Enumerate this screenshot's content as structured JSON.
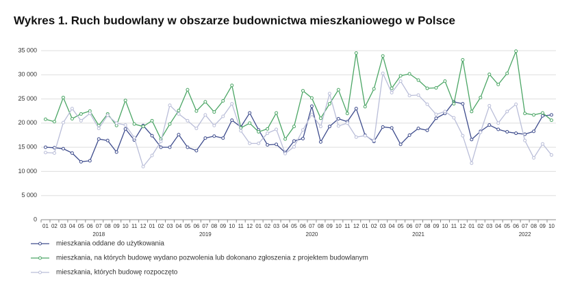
{
  "chart_data": {
    "type": "line",
    "title": "Wykres 1. Ruch budowlany w obszarze budownictwa mieszkaniowego w Polsce",
    "categories": [
      "01",
      "02",
      "03",
      "04",
      "05",
      "06",
      "07",
      "08",
      "09",
      "10",
      "11",
      "12",
      "01",
      "02",
      "03",
      "04",
      "05",
      "06",
      "07",
      "08",
      "09",
      "10",
      "11",
      "12",
      "01",
      "02",
      "03",
      "04",
      "05",
      "06",
      "07",
      "08",
      "09",
      "10",
      "11",
      "12",
      "01",
      "02",
      "03",
      "04",
      "05",
      "06",
      "07",
      "08",
      "09",
      "10",
      "11",
      "12",
      "01",
      "02",
      "03",
      "04",
      "05",
      "06",
      "07",
      "08",
      "09",
      "10"
    ],
    "years": [
      "2018",
      "2019",
      "2020",
      "2021",
      "2022"
    ],
    "ylim": [
      0,
      35000
    ],
    "yticks": [
      0,
      {
        "value": 5000,
        "label": "5 000"
      },
      {
        "value": 10000,
        "label": "10 000"
      },
      {
        "value": 15000,
        "label": "15 000"
      },
      {
        "value": 20000,
        "label": "20 000"
      },
      {
        "value": 25000,
        "label": "25 000"
      },
      {
        "value": 30000,
        "label": "30 000"
      },
      {
        "value": 35000,
        "label": "35 000"
      }
    ],
    "grid": true,
    "series": [
      {
        "name": "mieszkania oddane do użytkowania",
        "color": "#3d4b8c",
        "values": [
          15000,
          14900,
          14700,
          13800,
          12000,
          12200,
          16700,
          16400,
          14000,
          18800,
          16500,
          19500,
          17400,
          15000,
          15000,
          17600,
          15000,
          14300,
          16900,
          17300,
          16900,
          20600,
          19200,
          22100,
          18600,
          15500,
          15600,
          13900,
          16300,
          16800,
          23500,
          16100,
          19300,
          20900,
          20300,
          23000,
          17500,
          16200,
          19200,
          19000,
          15600,
          17500,
          18900,
          18500,
          21000,
          22000,
          24400,
          24000,
          16600,
          18300,
          19600,
          18700,
          18200,
          17900,
          17700,
          18300,
          21500,
          21700
        ]
      },
      {
        "name": "mieszkania, na których budowę wydano pozwolenia lub dokonano zgłoszenia z projektem budowlanym",
        "color": "#4aa564",
        "values": [
          20800,
          20300,
          25300,
          20900,
          21900,
          22500,
          19500,
          21900,
          19500,
          24700,
          19800,
          19300,
          20500,
          16700,
          19800,
          22600,
          26900,
          22500,
          24400,
          22300,
          24600,
          27800,
          19000,
          20000,
          18200,
          18800,
          22100,
          16700,
          19300,
          26700,
          25200,
          21000,
          24000,
          26900,
          22000,
          34500,
          23400,
          27100,
          33900,
          27200,
          29800,
          30200,
          28900,
          27200,
          27300,
          28700,
          24000,
          33100,
          22400,
          25300,
          30100,
          28000,
          30300,
          34900,
          22000,
          21700,
          22100,
          20600
        ]
      },
      {
        "name": "mieszkania, których budowę rozpoczęto",
        "color": "#b9bdd8",
        "values": [
          13900,
          13800,
          20100,
          23000,
          20500,
          22000,
          18900,
          21600,
          20000,
          19600,
          17000,
          11000,
          13300,
          16200,
          23700,
          21900,
          20500,
          18900,
          21700,
          19500,
          21400,
          24000,
          18400,
          15800,
          15800,
          17900,
          18700,
          13700,
          15100,
          18600,
          21800,
          19300,
          26100,
          19400,
          20000,
          17100,
          17400,
          16400,
          30300,
          26300,
          28700,
          25700,
          25800,
          23900,
          21800,
          22400,
          21100,
          17400,
          11700,
          18100,
          23600,
          20000,
          22400,
          23900,
          16400,
          12800,
          15700,
          13400
        ]
      }
    ]
  }
}
